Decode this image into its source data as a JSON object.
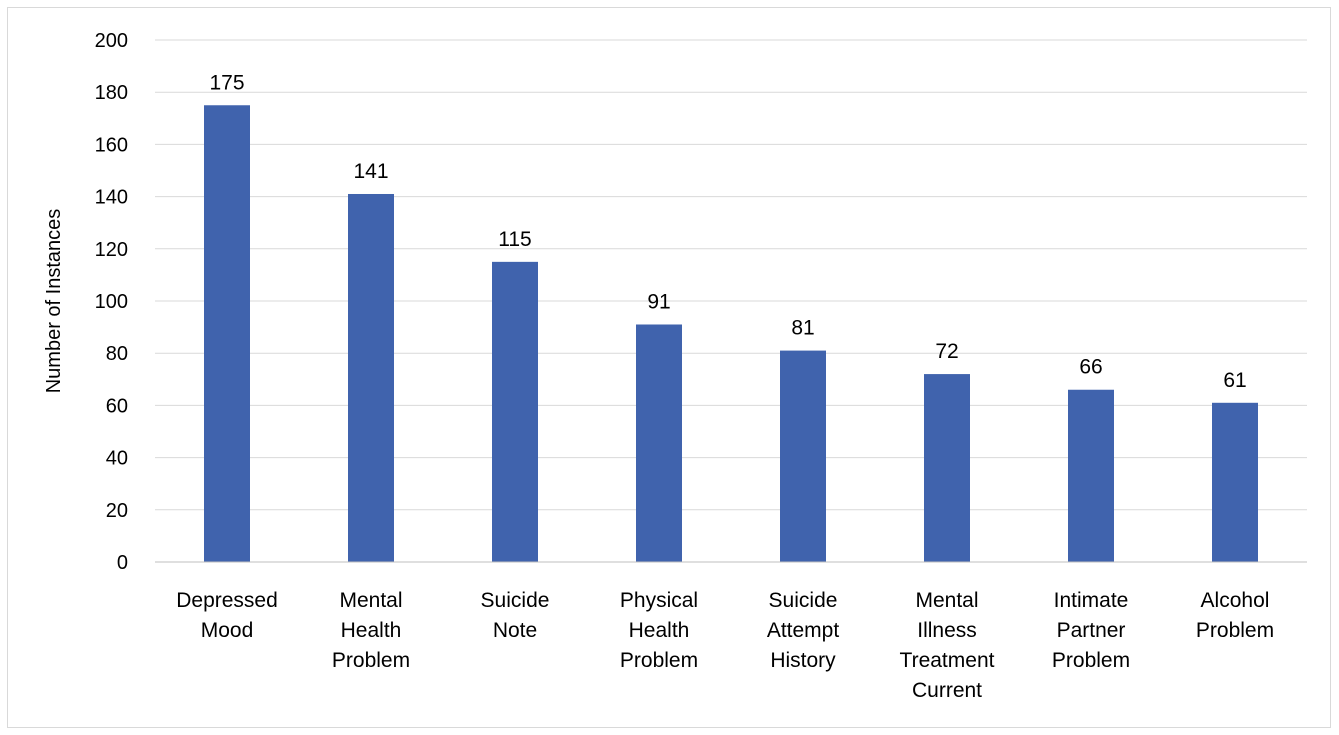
{
  "chart_data": {
    "type": "bar",
    "categories": [
      [
        "Depressed",
        "Mood"
      ],
      [
        "Mental",
        "Health",
        "Problem"
      ],
      [
        "Suicide",
        "Note"
      ],
      [
        "Physical",
        "Health",
        "Problem"
      ],
      [
        "Suicide",
        "Attempt",
        "History"
      ],
      [
        "Mental",
        "Illness",
        "Treatment",
        "Current"
      ],
      [
        "Intimate",
        "Partner",
        "Problem"
      ],
      [
        "Alcohol",
        "Problem"
      ]
    ],
    "values": [
      175,
      141,
      115,
      91,
      81,
      72,
      66,
      61
    ],
    "data_labels": [
      "175",
      "141",
      "115",
      "91",
      "81",
      "72",
      "66",
      "61"
    ],
    "title": "",
    "xlabel": "",
    "ylabel": "Number of Instances",
    "ylim": [
      0,
      200
    ],
    "yticks": [
      "0",
      "20",
      "40",
      "60",
      "80",
      "100",
      "120",
      "140",
      "160",
      "180",
      "200"
    ],
    "grid": true,
    "legend": "none",
    "colors": {
      "bar": "#4063ad",
      "grid": "#d9d9d9",
      "axis": "#bfbfbf",
      "text": "#000000"
    }
  }
}
